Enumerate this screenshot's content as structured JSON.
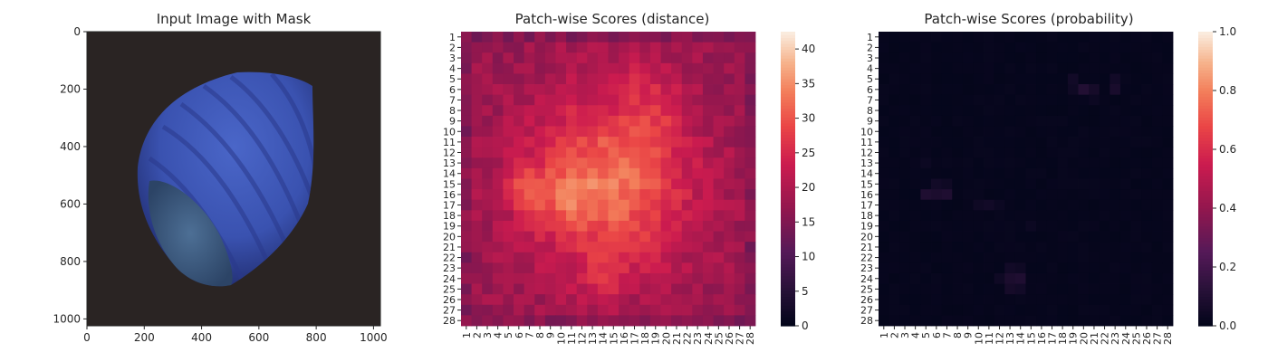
{
  "chart_data": [
    {
      "type": "image",
      "title": "Input Image with Mask",
      "xlim": [
        0,
        1024
      ],
      "ylim": [
        1024,
        0
      ],
      "xticks": [
        0,
        200,
        400,
        600,
        800,
        1000
      ],
      "yticks": [
        0,
        200,
        400,
        600,
        800,
        1000
      ],
      "background_color": "#2a2423",
      "object_color": "#3a52b0",
      "object_dark_color": "#1f2a6a",
      "cut_face_color": "#3c5a80"
    },
    {
      "type": "heatmap",
      "title": "Patch-wise Scores (distance)",
      "x_ticklabels": [
        "1",
        "2",
        "3",
        "4",
        "5",
        "6",
        "7",
        "8",
        "9",
        "10",
        "11",
        "12",
        "13",
        "14",
        "15",
        "16",
        "17",
        "18",
        "19",
        "20",
        "21",
        "22",
        "23",
        "24",
        "25",
        "26",
        "27",
        "28"
      ],
      "y_ticklabels": [
        "1",
        "2",
        "3",
        "4",
        "5",
        "6",
        "7",
        "8",
        "9",
        "10",
        "11",
        "12",
        "13",
        "14",
        "15",
        "16",
        "17",
        "18",
        "19",
        "20",
        "21",
        "22",
        "23",
        "24",
        "25",
        "26",
        "27",
        "28"
      ],
      "colorbar": {
        "min": 0,
        "max": 42.5,
        "ticks": [
          "0",
          "5",
          "10",
          "15",
          "20",
          "25",
          "30",
          "35",
          "40"
        ],
        "colormap": "rocket"
      },
      "pattern": {
        "low": 17.5,
        "high": 41.0,
        "blobs": [
          {
            "r": 15.5,
            "c": 6.5,
            "s": 1.4,
            "a": 7.0
          },
          {
            "r": 16.5,
            "c": 10.5,
            "s": 1.6,
            "a": 5.0
          },
          {
            "r": 24.0,
            "c": 14.0,
            "s": 1.5,
            "a": 5.0
          },
          {
            "r": 6.0,
            "c": 18.5,
            "s": 2.2,
            "a": 4.0
          },
          {
            "r": 10.0,
            "c": 19.5,
            "s": 1.4,
            "a": 3.0
          }
        ]
      }
    },
    {
      "type": "heatmap",
      "title": "Patch-wise Scores (probability)",
      "x_ticklabels": [
        "1",
        "2",
        "3",
        "4",
        "5",
        "6",
        "7",
        "8",
        "9",
        "10",
        "11",
        "12",
        "13",
        "14",
        "15",
        "16",
        "17",
        "18",
        "19",
        "20",
        "21",
        "22",
        "23",
        "24",
        "25",
        "26",
        "27",
        "28"
      ],
      "y_ticklabels": [
        "1",
        "2",
        "3",
        "4",
        "5",
        "6",
        "7",
        "8",
        "9",
        "10",
        "11",
        "12",
        "13",
        "14",
        "15",
        "16",
        "17",
        "18",
        "19",
        "20",
        "21",
        "22",
        "23",
        "24",
        "25",
        "26",
        "27",
        "28"
      ],
      "colorbar": {
        "min": 0,
        "max": 1.0,
        "ticks": [
          "0.0",
          "0.2",
          "0.4",
          "0.6",
          "0.8",
          "1.0"
        ],
        "colormap": "rocket"
      },
      "hot_cells": [
        {
          "r": 6,
          "c": 20,
          "v": 0.1
        },
        {
          "r": 6,
          "c": 21,
          "v": 0.06
        },
        {
          "r": 6,
          "c": 23,
          "v": 0.07
        },
        {
          "r": 5,
          "c": 19,
          "v": 0.05
        },
        {
          "r": 5,
          "c": 23,
          "v": 0.05
        },
        {
          "r": 6,
          "c": 19,
          "v": 0.04
        },
        {
          "r": 7,
          "c": 21,
          "v": 0.03
        },
        {
          "r": 16,
          "c": 5,
          "v": 0.09
        },
        {
          "r": 16,
          "c": 6,
          "v": 0.08
        },
        {
          "r": 16,
          "c": 7,
          "v": 0.09
        },
        {
          "r": 15,
          "c": 6,
          "v": 0.05
        },
        {
          "r": 15,
          "c": 7,
          "v": 0.04
        },
        {
          "r": 13,
          "c": 5,
          "v": 0.03
        },
        {
          "r": 17,
          "c": 11,
          "v": 0.05
        },
        {
          "r": 17,
          "c": 10,
          "v": 0.04
        },
        {
          "r": 17,
          "c": 12,
          "v": 0.03
        },
        {
          "r": 23,
          "c": 13,
          "v": 0.05
        },
        {
          "r": 24,
          "c": 13,
          "v": 0.08
        },
        {
          "r": 24,
          "c": 14,
          "v": 0.09
        },
        {
          "r": 25,
          "c": 13,
          "v": 0.06
        },
        {
          "r": 25,
          "c": 14,
          "v": 0.05
        },
        {
          "r": 23,
          "c": 14,
          "v": 0.04
        },
        {
          "r": 19,
          "c": 15,
          "v": 0.03
        },
        {
          "r": 24,
          "c": 12,
          "v": 0.04
        }
      ]
    }
  ]
}
